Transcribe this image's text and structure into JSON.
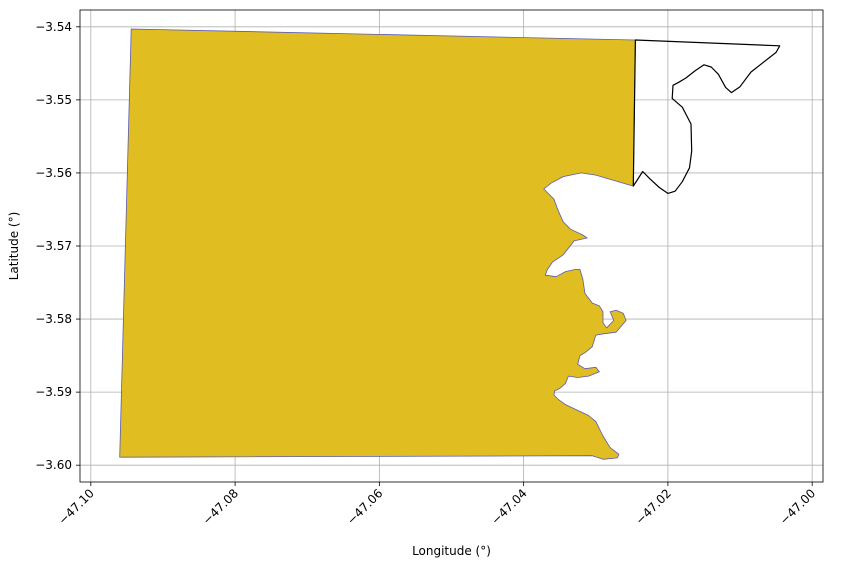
{
  "chart_data": {
    "type": "map",
    "xlabel": "Longitude (°)",
    "ylabel": "Latitude (°)",
    "xlim": [
      -47.1015,
      -46.9985
    ],
    "ylim": [
      -3.6023,
      -3.5377
    ],
    "grid": true,
    "x_ticks": [
      {
        "value": -47.1,
        "label": "−47.10"
      },
      {
        "value": -47.08,
        "label": "−47.08"
      },
      {
        "value": -47.06,
        "label": "−47.06"
      },
      {
        "value": -47.04,
        "label": "−47.04"
      },
      {
        "value": -47.02,
        "label": "−47.02"
      },
      {
        "value": -47.0,
        "label": "−47.00"
      }
    ],
    "y_ticks": [
      {
        "value": -3.54,
        "label": "−3.54"
      },
      {
        "value": -3.55,
        "label": "−3.55"
      },
      {
        "value": -3.56,
        "label": "−3.56"
      },
      {
        "value": -3.57,
        "label": "−3.57"
      },
      {
        "value": -3.58,
        "label": "−3.58"
      },
      {
        "value": -3.59,
        "label": "−3.59"
      },
      {
        "value": -3.6,
        "label": "−3.60"
      }
    ],
    "regions": [
      {
        "fill": "#e0bd20",
        "stroke": "#5b5bb0",
        "coords": [
          [
            -47.0944,
            -3.5403
          ],
          [
            -47.0245,
            -3.5418
          ],
          [
            -47.0248,
            -3.5618
          ],
          [
            -47.03,
            -3.5603
          ],
          [
            -47.032,
            -3.56
          ],
          [
            -47.0345,
            -3.5605
          ],
          [
            -47.0362,
            -3.5614
          ],
          [
            -47.0372,
            -3.5622
          ],
          [
            -47.0358,
            -3.5636
          ],
          [
            -47.0352,
            -3.5652
          ],
          [
            -47.0345,
            -3.5667
          ],
          [
            -47.0335,
            -3.5677
          ],
          [
            -47.0318,
            -3.5685
          ],
          [
            -47.0312,
            -3.5689
          ],
          [
            -47.033,
            -3.5693
          ],
          [
            -47.0345,
            -3.5712
          ],
          [
            -47.036,
            -3.5722
          ],
          [
            -47.0367,
            -3.5732
          ],
          [
            -47.037,
            -3.574
          ],
          [
            -47.0355,
            -3.5742
          ],
          [
            -47.0342,
            -3.5735
          ],
          [
            -47.0328,
            -3.5732
          ],
          [
            -47.0322,
            -3.5732
          ],
          [
            -47.0318,
            -3.5745
          ],
          [
            -47.0315,
            -3.5765
          ],
          [
            -47.0305,
            -3.5778
          ],
          [
            -47.0295,
            -3.5782
          ],
          [
            -47.029,
            -3.579
          ],
          [
            -47.029,
            -3.5805
          ],
          [
            -47.0285,
            -3.5812
          ],
          [
            -47.0275,
            -3.5802
          ],
          [
            -47.028,
            -3.579
          ],
          [
            -47.0272,
            -3.5788
          ],
          [
            -47.0262,
            -3.5792
          ],
          [
            -47.0258,
            -3.5802
          ],
          [
            -47.0272,
            -3.5818
          ],
          [
            -47.0288,
            -3.582
          ],
          [
            -47.03,
            -3.5822
          ],
          [
            -47.0305,
            -3.5838
          ],
          [
            -47.0315,
            -3.5846
          ],
          [
            -47.0322,
            -3.585
          ],
          [
            -47.0325,
            -3.5862
          ],
          [
            -47.0315,
            -3.5868
          ],
          [
            -47.03,
            -3.5866
          ],
          [
            -47.0295,
            -3.5872
          ],
          [
            -47.031,
            -3.5878
          ],
          [
            -47.0325,
            -3.588
          ],
          [
            -47.0338,
            -3.5878
          ],
          [
            -47.0342,
            -3.5888
          ],
          [
            -47.035,
            -3.5895
          ],
          [
            -47.0357,
            -3.5898
          ],
          [
            -47.0358,
            -3.5904
          ],
          [
            -47.0352,
            -3.591
          ],
          [
            -47.0342,
            -3.5917
          ],
          [
            -47.0325,
            -3.5925
          ],
          [
            -47.031,
            -3.5932
          ],
          [
            -47.03,
            -3.594
          ],
          [
            -47.029,
            -3.596
          ],
          [
            -47.028,
            -3.5976
          ],
          [
            -47.0268,
            -3.5985
          ],
          [
            -47.027,
            -3.599
          ],
          [
            -47.029,
            -3.5992
          ],
          [
            -47.0305,
            -3.5987
          ],
          [
            -47.096,
            -3.5989
          ]
        ]
      },
      {
        "fill": "none",
        "stroke": "#000000",
        "coords": [
          [
            -47.0245,
            -3.5418
          ],
          [
            -47.0045,
            -3.5426
          ],
          [
            -47.005,
            -3.5435
          ],
          [
            -47.0085,
            -3.5462
          ],
          [
            -47.01,
            -3.5482
          ],
          [
            -47.0112,
            -3.549
          ],
          [
            -47.012,
            -3.5483
          ],
          [
            -47.013,
            -3.5465
          ],
          [
            -47.014,
            -3.5455
          ],
          [
            -47.015,
            -3.5452
          ],
          [
            -47.0162,
            -3.546
          ],
          [
            -47.0175,
            -3.547
          ],
          [
            -47.0185,
            -3.5476
          ],
          [
            -47.0193,
            -3.548
          ],
          [
            -47.0194,
            -3.5498
          ],
          [
            -47.018,
            -3.551
          ],
          [
            -47.0168,
            -3.5533
          ],
          [
            -47.0167,
            -3.557
          ],
          [
            -47.017,
            -3.5593
          ],
          [
            -47.018,
            -3.5612
          ],
          [
            -47.019,
            -3.5625
          ],
          [
            -47.02,
            -3.5628
          ],
          [
            -47.0212,
            -3.562
          ],
          [
            -47.0225,
            -3.5608
          ],
          [
            -47.0235,
            -3.5598
          ],
          [
            -47.0248,
            -3.5618
          ]
        ]
      }
    ]
  }
}
